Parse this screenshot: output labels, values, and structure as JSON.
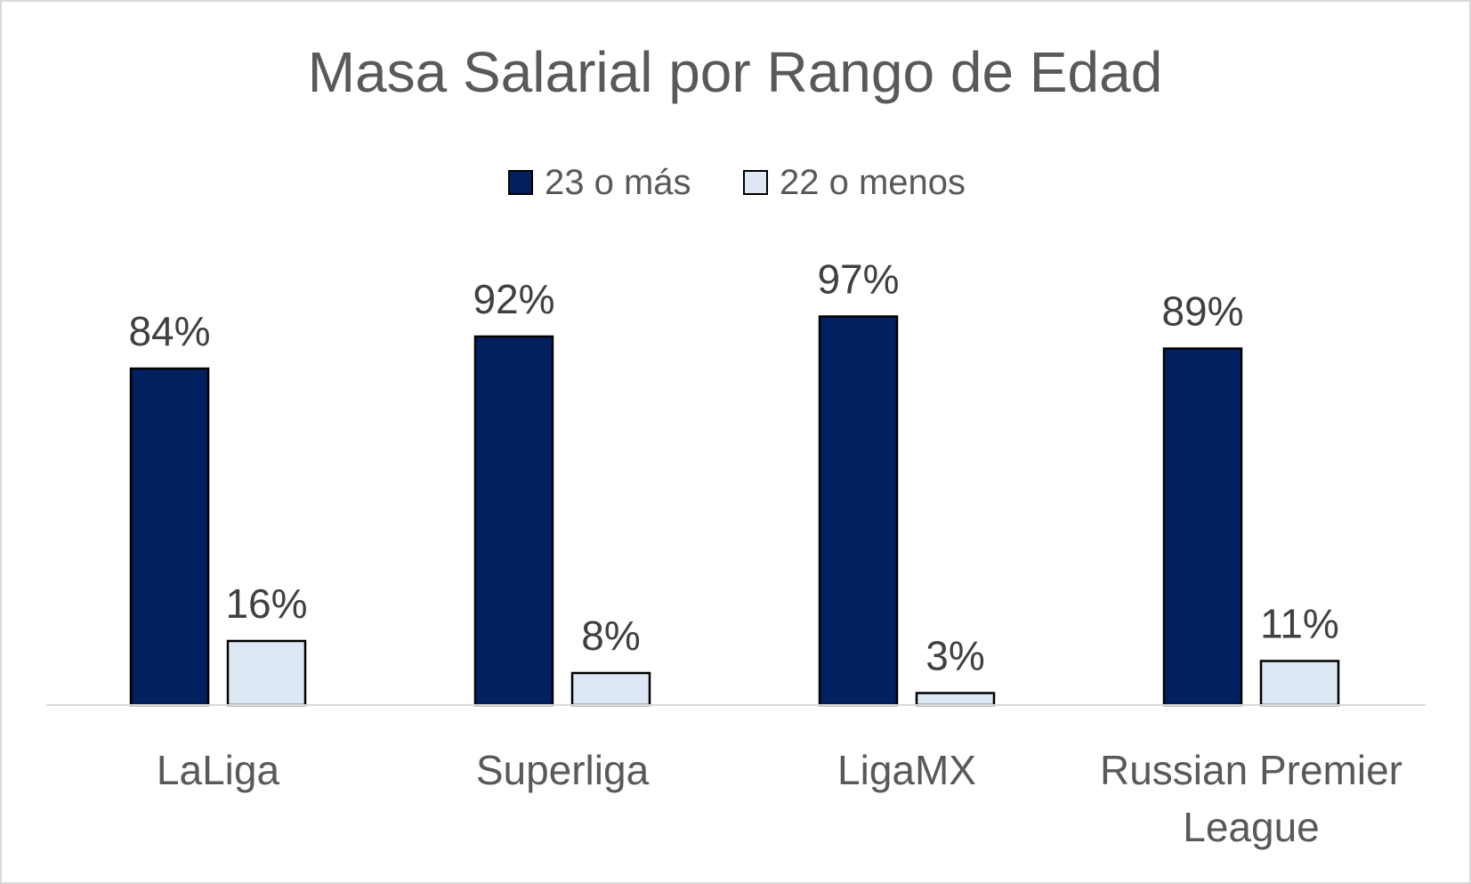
{
  "chart_data": {
    "type": "bar",
    "title": "Masa Salarial por Rango de Edad",
    "categories": [
      [
        "LaLiga"
      ],
      [
        "Superliga"
      ],
      [
        "LigaMX"
      ],
      [
        "Russian Premier",
        "League"
      ]
    ],
    "series": [
      {
        "name": "23 o más",
        "values": [
          84,
          92,
          97,
          89
        ],
        "labels": [
          "84%",
          "92%",
          "97%",
          "89%"
        ],
        "color": "#002060"
      },
      {
        "name": "22 o menos",
        "values": [
          16,
          8,
          3,
          11
        ],
        "labels": [
          "16%",
          "8%",
          "3%",
          "11%"
        ],
        "color": "#dde8f4"
      }
    ],
    "ylim": [
      0,
      100
    ],
    "value_format": "percent",
    "grid": false,
    "legend_position": "top",
    "bar_stroke": "#000000",
    "axis_color": "#d9d9d9"
  }
}
